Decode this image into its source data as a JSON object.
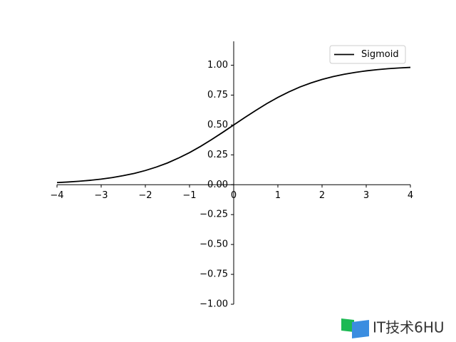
{
  "chart_data": {
    "type": "line",
    "x": [
      -4,
      -3.75,
      -3.5,
      -3.25,
      -3,
      -2.75,
      -2.5,
      -2.25,
      -2,
      -1.75,
      -1.5,
      -1.25,
      -1,
      -0.75,
      -0.5,
      -0.25,
      0,
      0.25,
      0.5,
      0.75,
      1,
      1.25,
      1.5,
      1.75,
      2,
      2.25,
      2.5,
      2.75,
      3,
      3.25,
      3.5,
      3.75,
      4
    ],
    "series": [
      {
        "name": "Sigmoid",
        "color": "#000000",
        "values": [
          0.018,
          0.023,
          0.029,
          0.037,
          0.047,
          0.06,
          0.076,
          0.095,
          0.119,
          0.148,
          0.182,
          0.223,
          0.269,
          0.321,
          0.378,
          0.438,
          0.5,
          0.562,
          0.622,
          0.679,
          0.731,
          0.777,
          0.818,
          0.852,
          0.881,
          0.905,
          0.924,
          0.94,
          0.953,
          0.963,
          0.971,
          0.977,
          0.982
        ]
      }
    ],
    "xlim": [
      -4,
      4
    ],
    "ylim": [
      -1,
      1.2
    ],
    "xticks": [
      {
        "value": -4,
        "label": "−4"
      },
      {
        "value": -3,
        "label": "−3"
      },
      {
        "value": -2,
        "label": "−2"
      },
      {
        "value": -1,
        "label": "−1"
      },
      0,
      1,
      2,
      3,
      4
    ],
    "yticks": [
      {
        "value": 1,
        "label": "1.00"
      },
      {
        "value": 0.75,
        "label": "0.75"
      },
      {
        "value": 0.5,
        "label": "0.50"
      },
      {
        "value": 0.25,
        "label": "0.25"
      },
      {
        "value": 0,
        "label": "0.00"
      },
      {
        "value": -0.25,
        "label": "−0.25"
      },
      {
        "value": -0.5,
        "label": "−0.50"
      },
      {
        "value": -0.75,
        "label": "−0.75"
      },
      {
        "value": -1,
        "label": "−1.00"
      }
    ],
    "legend": "upper right"
  },
  "watermark": "IT技术6HU"
}
